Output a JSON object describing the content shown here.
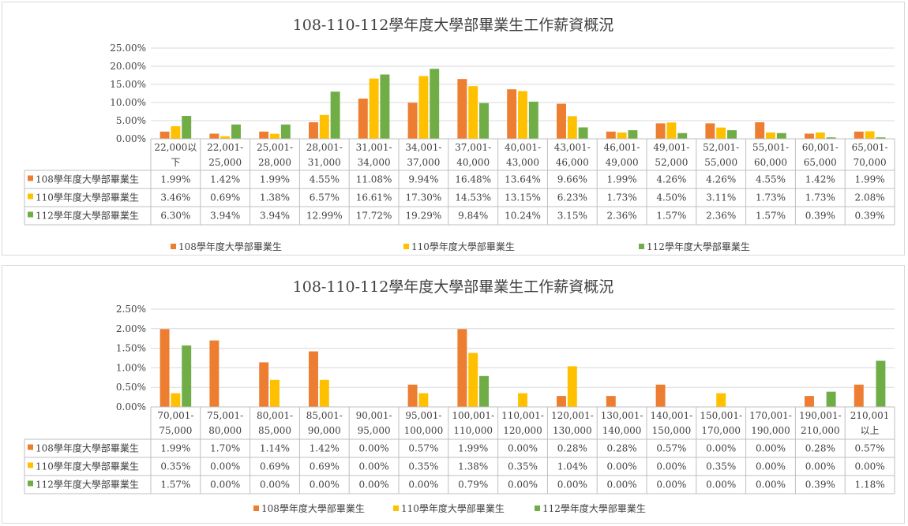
{
  "chart_data": [
    {
      "type": "bar",
      "title": "108-110-112學年度大學部畢業生工作薪資概況",
      "ylim": [
        0,
        25
      ],
      "yticks": [
        "0.00%",
        "5.00%",
        "10.00%",
        "15.00%",
        "20.00%",
        "25.00%"
      ],
      "grid": true,
      "legend": "bottom",
      "categories": [
        [
          "22,000以",
          "下"
        ],
        [
          "22,001-",
          "25,000"
        ],
        [
          "25,001-",
          "28,000"
        ],
        [
          "28,001-",
          "31,000"
        ],
        [
          "31,001-",
          "34,000"
        ],
        [
          "34,001-",
          "37,000"
        ],
        [
          "37,001-",
          "40,000"
        ],
        [
          "40,001-",
          "43,000"
        ],
        [
          "43,001-",
          "46,000"
        ],
        [
          "46,001-",
          "49,000"
        ],
        [
          "49,001-",
          "52,000"
        ],
        [
          "52,001-",
          "55,000"
        ],
        [
          "55,001-",
          "60,000"
        ],
        [
          "60,001-",
          "65,000"
        ],
        [
          "65,001-",
          "70,000"
        ]
      ],
      "series": [
        {
          "name": "108學年度大學部畢業生",
          "color": "#ed7d31",
          "values": [
            1.99,
            1.42,
            1.99,
            4.55,
            11.08,
            9.94,
            16.48,
            13.64,
            9.66,
            1.99,
            4.26,
            4.26,
            4.55,
            1.42,
            1.99
          ],
          "labels": [
            "1.99%",
            "1.42%",
            "1.99%",
            "4.55%",
            "11.08%",
            "9.94%",
            "16.48%",
            "13.64%",
            "9.66%",
            "1.99%",
            "4.26%",
            "4.26%",
            "4.55%",
            "1.42%",
            "1.99%"
          ]
        },
        {
          "name": "110學年度大學部畢業生",
          "color": "#ffc000",
          "values": [
            3.46,
            0.69,
            1.38,
            6.57,
            16.61,
            17.3,
            14.53,
            13.15,
            6.23,
            1.73,
            4.5,
            3.11,
            1.73,
            1.73,
            2.08
          ],
          "labels": [
            "3.46%",
            "0.69%",
            "1.38%",
            "6.57%",
            "16.61%",
            "17.30%",
            "14.53%",
            "13.15%",
            "6.23%",
            "1.73%",
            "4.50%",
            "3.11%",
            "1.73%",
            "1.73%",
            "2.08%"
          ]
        },
        {
          "name": "112學年度大學部畢業生",
          "color": "#70ad47",
          "values": [
            6.3,
            3.94,
            3.94,
            12.99,
            17.72,
            19.29,
            9.84,
            10.24,
            3.15,
            2.36,
            1.57,
            2.36,
            1.57,
            0.39,
            0.39
          ],
          "labels": [
            "6.30%",
            "3.94%",
            "3.94%",
            "12.99%",
            "17.72%",
            "19.29%",
            "9.84%",
            "10.24%",
            "3.15%",
            "2.36%",
            "1.57%",
            "2.36%",
            "1.57%",
            "0.39%",
            "0.39%"
          ]
        }
      ]
    },
    {
      "type": "bar",
      "title": "108-110-112學年度大學部畢業生工作薪資概況",
      "ylim": [
        0,
        2.5
      ],
      "yticks": [
        "0.00%",
        "0.50%",
        "1.00%",
        "1.50%",
        "2.00%",
        "2.50%"
      ],
      "grid": true,
      "legend": "bottom",
      "categories": [
        [
          "70,001-",
          "75,000"
        ],
        [
          "75,001-",
          "80,000"
        ],
        [
          "80,001-",
          "85,000"
        ],
        [
          "85,001-",
          "90,000"
        ],
        [
          "90,001-",
          "95,000"
        ],
        [
          "95,001-",
          "100,000"
        ],
        [
          "100,001-",
          "110,000"
        ],
        [
          "110,001-",
          "120,000"
        ],
        [
          "120,001-",
          "130,000"
        ],
        [
          "130,001-",
          "140,000"
        ],
        [
          "140,001-",
          "150,000"
        ],
        [
          "150,001-",
          "170,000"
        ],
        [
          "170,001-",
          "190,000"
        ],
        [
          "190,001-",
          "210,000"
        ],
        [
          "210,001",
          "以上"
        ]
      ],
      "series": [
        {
          "name": "108學年度大學部畢業生",
          "color": "#ed7d31",
          "values": [
            1.99,
            1.7,
            1.14,
            1.42,
            0.0,
            0.57,
            1.99,
            0.0,
            0.28,
            0.28,
            0.57,
            0.0,
            0.0,
            0.28,
            0.57
          ],
          "labels": [
            "1.99%",
            "1.70%",
            "1.14%",
            "1.42%",
            "0.00%",
            "0.57%",
            "1.99%",
            "0.00%",
            "0.28%",
            "0.28%",
            "0.57%",
            "0.00%",
            "0.00%",
            "0.28%",
            "0.57%"
          ]
        },
        {
          "name": "110學年度大學部畢業生",
          "color": "#ffc000",
          "values": [
            0.35,
            0.0,
            0.69,
            0.69,
            0.0,
            0.35,
            1.38,
            0.35,
            1.04,
            0.0,
            0.0,
            0.35,
            0.0,
            0.0,
            0.0
          ],
          "labels": [
            "0.35%",
            "0.00%",
            "0.69%",
            "0.69%",
            "0.00%",
            "0.35%",
            "1.38%",
            "0.35%",
            "1.04%",
            "0.00%",
            "0.00%",
            "0.35%",
            "0.00%",
            "0.00%",
            "0.00%"
          ]
        },
        {
          "name": "112學年度大學部畢業生",
          "color": "#70ad47",
          "values": [
            1.57,
            0.0,
            0.0,
            0.0,
            0.0,
            0.0,
            0.79,
            0.0,
            0.0,
            0.0,
            0.0,
            0.0,
            0.0,
            0.39,
            1.18
          ],
          "labels": [
            "1.57%",
            "0.00%",
            "0.00%",
            "0.00%",
            "0.00%",
            "0.00%",
            "0.79%",
            "0.00%",
            "0.00%",
            "0.00%",
            "0.00%",
            "0.00%",
            "0.00%",
            "0.39%",
            "1.18%"
          ]
        }
      ]
    }
  ]
}
